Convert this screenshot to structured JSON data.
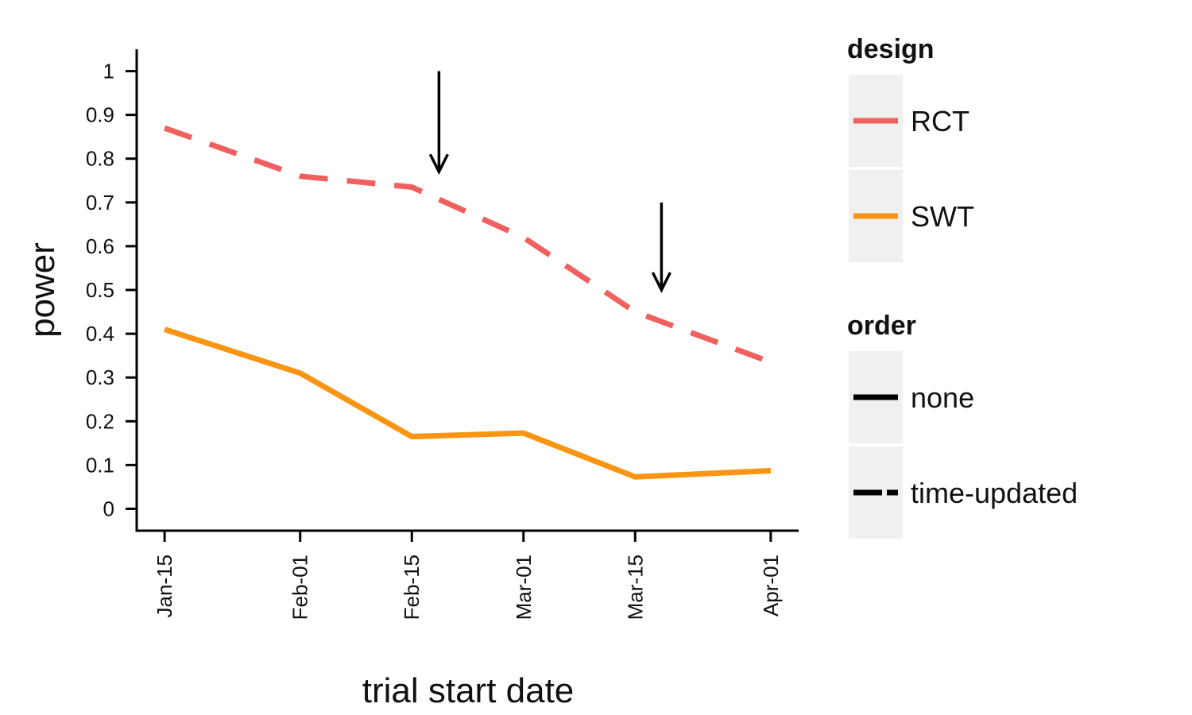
{
  "chart_data": {
    "type": "line",
    "title": "",
    "xlabel": "trial start date",
    "ylabel": "power",
    "x": [
      "Jan-15",
      "Feb-01",
      "Feb-15",
      "Mar-01",
      "Mar-15",
      "Apr-01"
    ],
    "x_days": [
      15,
      32,
      46,
      60,
      74,
      91
    ],
    "xlim_days": [
      11.5,
      94.5
    ],
    "ylim": [
      -0.05,
      1.05
    ],
    "yticks": [
      0,
      0.1,
      0.2,
      0.3,
      0.4,
      0.5,
      0.6,
      0.7,
      0.8,
      0.9,
      1
    ],
    "ytick_labels": [
      "0",
      "0.1",
      "0.2",
      "0.3",
      "0.4",
      "0.5",
      "0.6",
      "0.7",
      "0.8",
      "0.9",
      "1"
    ],
    "grid": false,
    "series": [
      {
        "name": "RCT",
        "design": "RCT",
        "order": "time-updated",
        "color": "#f0605f",
        "dashed": true,
        "values": [
          0.87,
          0.76,
          0.735,
          0.62,
          0.45,
          0.335
        ]
      },
      {
        "name": "SWT",
        "design": "SWT",
        "order": "none",
        "color": "#f99512",
        "dashed": false,
        "values": [
          0.41,
          0.31,
          0.165,
          0.173,
          0.073,
          0.087
        ]
      }
    ],
    "annotations": [
      {
        "type": "arrow",
        "x_day": 49.4,
        "y_from": 1.0,
        "y_to": 0.77
      },
      {
        "type": "arrow",
        "x_day": 77.3,
        "y_from": 0.7,
        "y_to": 0.5
      }
    ],
    "legend": {
      "placement": "right",
      "groups": [
        {
          "title": "design",
          "items": [
            {
              "label": "RCT",
              "color": "#f0605f",
              "dashed": false
            },
            {
              "label": "SWT",
              "color": "#f99512",
              "dashed": false
            }
          ]
        },
        {
          "title": "order",
          "items": [
            {
              "label": "none",
              "color": "#000000",
              "dashed": false
            },
            {
              "label": "time-updated",
              "color": "#000000",
              "dashed": true
            }
          ]
        }
      ]
    }
  }
}
